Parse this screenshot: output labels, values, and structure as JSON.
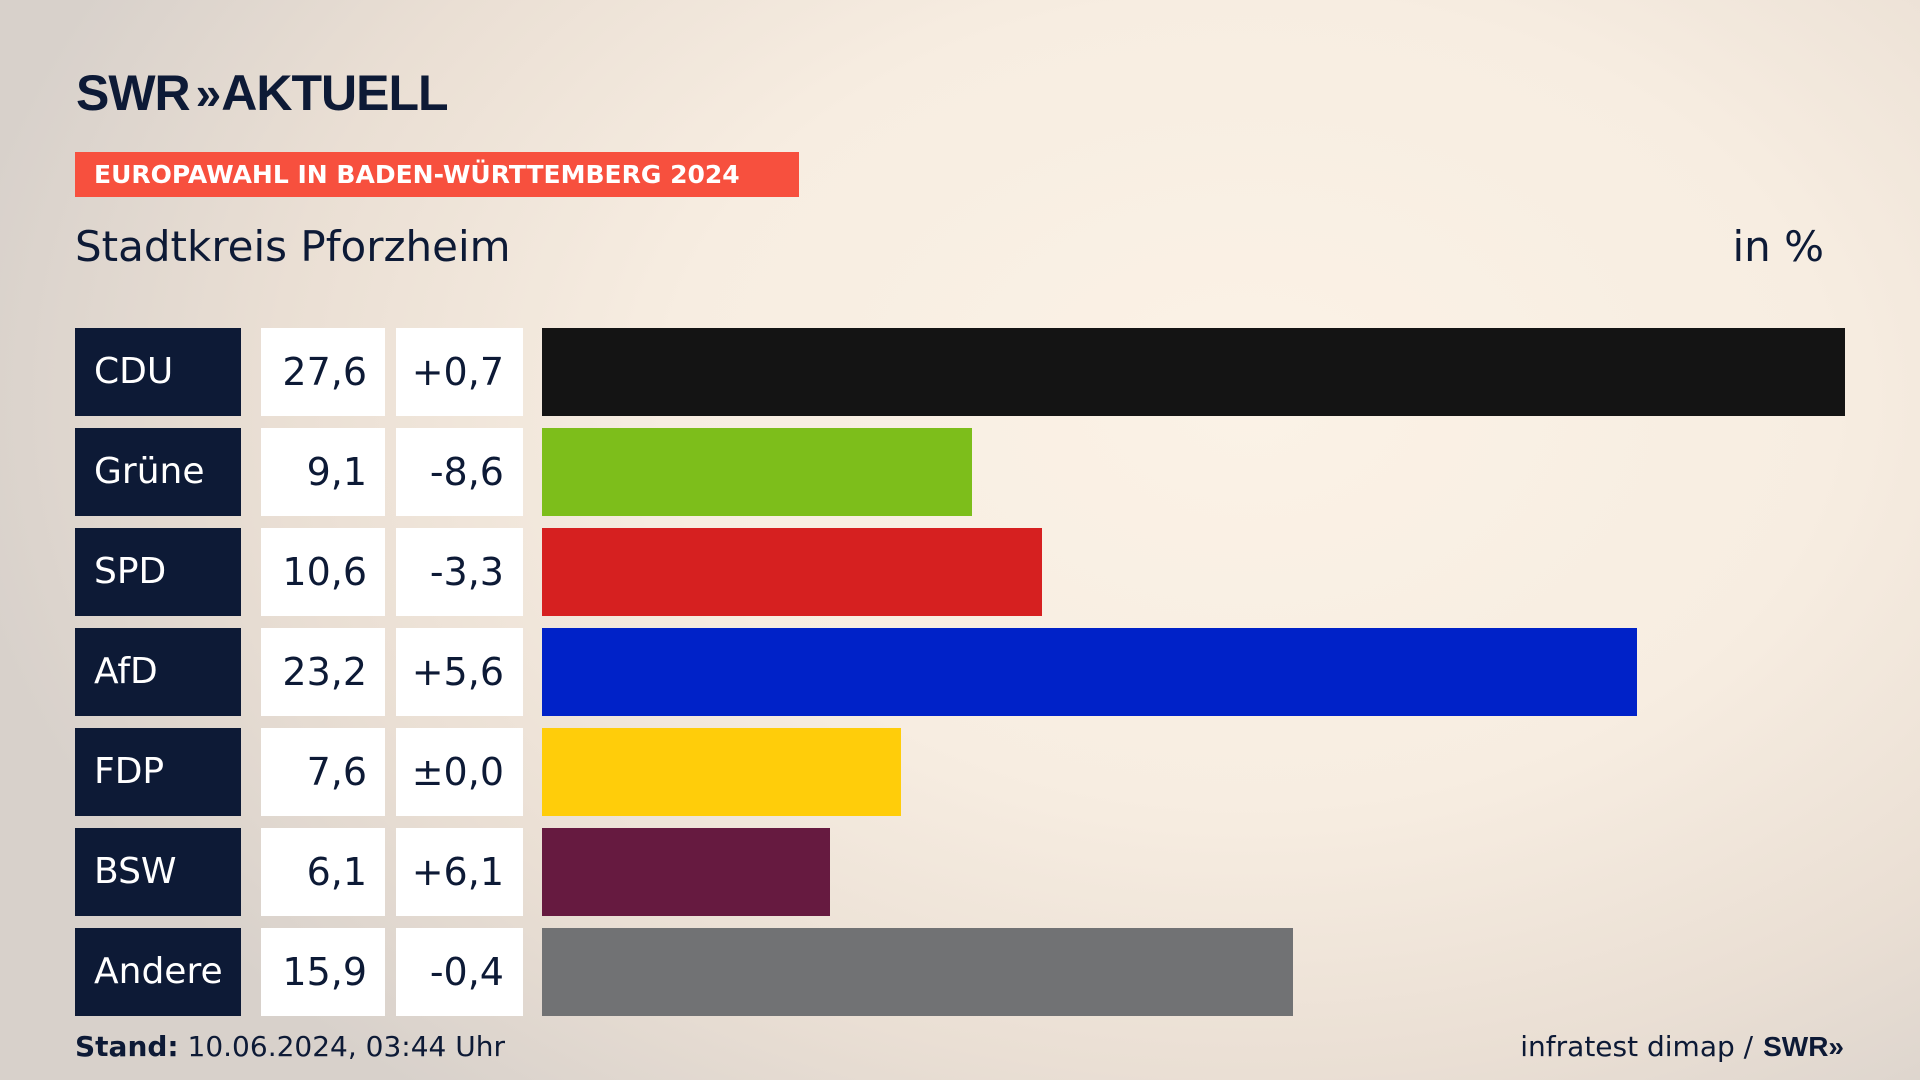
{
  "header": {
    "logo_text": "SWR",
    "logo_chevrons": "»",
    "logo_suffix": "AKTUELL",
    "banner": "EUROPAWAHL IN BADEN-WÜRTTEMBERG 2024",
    "region": "Stadtkreis Pforzheim",
    "unit": "in %"
  },
  "chart_data": {
    "type": "bar",
    "orientation": "horizontal",
    "categories": [
      "CDU",
      "Grüne",
      "SPD",
      "AfD",
      "FDP",
      "BSW",
      "Andere"
    ],
    "values": [
      27.6,
      9.1,
      10.6,
      23.2,
      7.6,
      6.1,
      15.9
    ],
    "value_labels": [
      "27,6",
      "9,1",
      "10,6",
      "23,2",
      "7,6",
      "6,1",
      "15,9"
    ],
    "change_labels": [
      "+0,7",
      "-8,6",
      "-3,3",
      "+5,6",
      "±0,0",
      "+6,1",
      "-0,4"
    ],
    "changes": [
      0.7,
      -8.6,
      -3.3,
      5.6,
      0.0,
      6.1,
      -0.4
    ],
    "colors": [
      "#141414",
      "#7dbe1b",
      "#d62020",
      "#0022c8",
      "#ffcd0a",
      "#661a40",
      "#717274"
    ],
    "xlim": [
      0,
      27.6
    ],
    "grid": false,
    "legend": "none"
  },
  "footer": {
    "stand_label": "Stand:",
    "stand_value": "10.06.2024, 03:44 Uhr",
    "source": "infratest dimap /",
    "source_logo": "SWR»"
  }
}
